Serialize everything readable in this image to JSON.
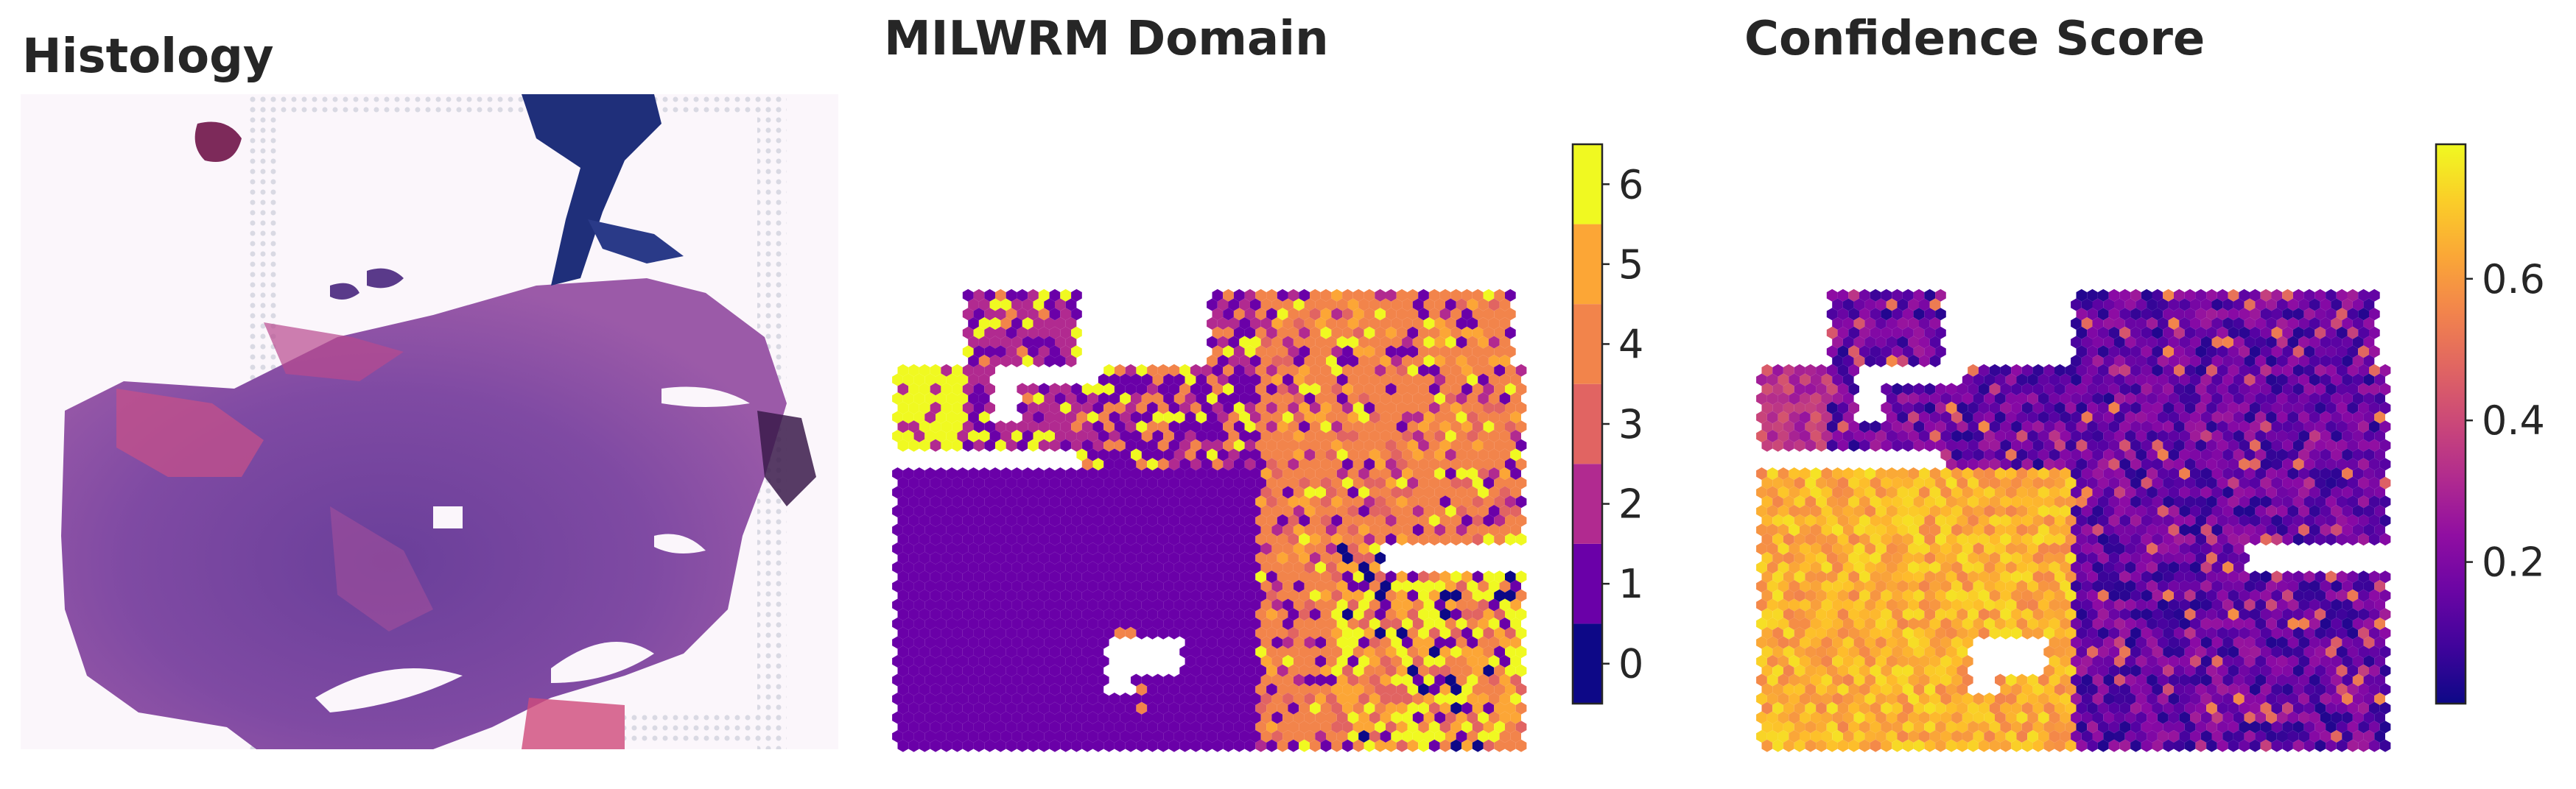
{
  "panels": {
    "histology": {
      "title": "Histology"
    },
    "domain": {
      "title": "MILWRM Domain"
    },
    "confidence": {
      "title": "Confidence Score"
    }
  },
  "chart_data": [
    {
      "type": "image",
      "title": "Histology",
      "description_colors": [
        "#8a4ea5",
        "#5b3a8f",
        "#c2437f",
        "#243a82"
      ]
    },
    {
      "type": "heatmap",
      "title": "MILWRM Domain",
      "colorbar": {
        "kind": "discrete",
        "ticks": [
          0,
          1,
          2,
          3,
          4,
          5,
          6
        ],
        "range": [
          -0.5,
          6.5
        ],
        "colors": [
          "#0d0887",
          "#6a00a8",
          "#b12a90",
          "#e16462",
          "#f2844b",
          "#fca636",
          "#f0f921"
        ]
      },
      "legend_placement": "right",
      "grid": false
    },
    {
      "type": "heatmap",
      "title": "Confidence Score",
      "colorbar": {
        "kind": "continuous",
        "colormap": "plasma",
        "ticks": [
          0.2,
          0.4,
          0.6
        ],
        "range": [
          0.0,
          0.79
        ]
      },
      "legend_placement": "right",
      "grid": false
    }
  ]
}
